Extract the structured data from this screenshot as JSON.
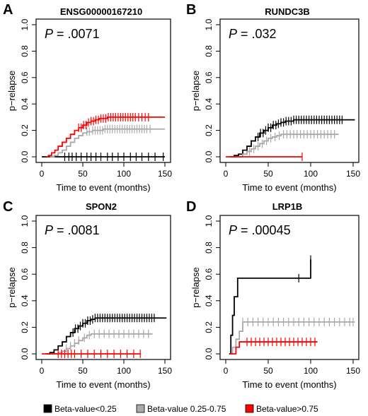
{
  "legend": [
    {
      "label": "Beta-value<0.25",
      "color": "#000000"
    },
    {
      "label": "Beta-value 0.25-0.75",
      "color": "#a9a9a9"
    },
    {
      "label": "Beta-value>0.75",
      "color": "#ff0000"
    }
  ],
  "chart_data": [
    {
      "type": "line",
      "panel": "A",
      "title": "ENSG00000167210",
      "pvalue": {
        "prefix": "P",
        "text": " = .0071"
      },
      "xlabel": "Time to event (months)",
      "ylabel": "p−relapse",
      "xlim": [
        0,
        150
      ],
      "ylim": [
        0,
        1.0
      ],
      "xticks": [
        0,
        50,
        100,
        150
      ],
      "yticks": [
        "0.0",
        "0.2",
        "0.4",
        "0.6",
        "0.8",
        "1.0"
      ],
      "series": [
        {
          "color": "#000000",
          "x": [
            0,
            150
          ],
          "y": [
            0.0,
            0.0
          ],
          "censor": [
            28,
            33,
            37,
            42,
            48,
            55,
            60,
            66,
            72,
            80,
            86,
            93,
            100,
            108,
            115,
            122,
            130,
            138,
            148
          ]
        },
        {
          "color": "#a9a9a9",
          "x": [
            10,
            15,
            20,
            25,
            30,
            35,
            40,
            45,
            50,
            55,
            62,
            68,
            75,
            150
          ],
          "y": [
            0.0,
            0.01,
            0.03,
            0.05,
            0.08,
            0.11,
            0.14,
            0.16,
            0.18,
            0.19,
            0.2,
            0.2,
            0.21,
            0.21
          ],
          "censor": [
            55,
            58,
            62,
            65,
            68,
            71,
            74,
            77,
            80,
            83,
            86,
            89,
            92,
            95,
            98,
            101,
            104,
            107,
            110,
            113,
            116,
            119,
            122,
            125,
            128,
            132
          ]
        },
        {
          "color": "#ff0000",
          "x": [
            5,
            8,
            12,
            16,
            20,
            25,
            30,
            35,
            40,
            45,
            50,
            55,
            60,
            65,
            70,
            75,
            80,
            150
          ],
          "y": [
            0.0,
            0.01,
            0.03,
            0.05,
            0.08,
            0.11,
            0.14,
            0.17,
            0.2,
            0.22,
            0.24,
            0.26,
            0.27,
            0.28,
            0.29,
            0.29,
            0.3,
            0.3
          ],
          "censor": [
            45,
            48,
            51,
            54,
            57,
            60,
            63,
            66,
            69,
            72,
            75,
            78,
            81,
            84,
            87,
            90,
            93,
            96,
            99,
            102,
            105,
            108,
            111,
            114,
            118,
            122,
            126,
            130
          ]
        }
      ]
    },
    {
      "type": "line",
      "panel": "B",
      "title": "RUNDC3B",
      "pvalue": {
        "prefix": "P",
        "text": " = .032"
      },
      "xlabel": "Time to event (months)",
      "ylabel": "p−relapse",
      "xlim": [
        0,
        150
      ],
      "ylim": [
        0,
        1.0
      ],
      "xticks": [
        0,
        50,
        100,
        150
      ],
      "yticks": [
        "0.0",
        "0.2",
        "0.4",
        "0.6",
        "0.8",
        "1.0"
      ],
      "series": [
        {
          "color": "#000000",
          "x": [
            5,
            10,
            15,
            20,
            25,
            30,
            35,
            40,
            45,
            50,
            55,
            60,
            65,
            70,
            80,
            152
          ],
          "y": [
            0.0,
            0.01,
            0.02,
            0.05,
            0.08,
            0.12,
            0.15,
            0.18,
            0.2,
            0.22,
            0.24,
            0.25,
            0.26,
            0.27,
            0.28,
            0.28
          ],
          "censor": [
            38,
            41,
            44,
            47,
            50,
            53,
            56,
            59,
            62,
            65,
            68,
            71,
            74,
            77,
            80,
            83,
            86,
            89,
            92,
            95,
            98,
            101,
            104,
            107,
            110,
            113,
            116,
            119,
            122,
            125,
            128,
            131,
            134,
            137
          ]
        },
        {
          "color": "#a9a9a9",
          "x": [
            10,
            20,
            25,
            30,
            35,
            40,
            45,
            50,
            55,
            60,
            65,
            133
          ],
          "y": [
            0.0,
            0.02,
            0.04,
            0.06,
            0.08,
            0.1,
            0.12,
            0.14,
            0.15,
            0.16,
            0.17,
            0.17
          ],
          "censor": [
            28,
            33,
            38,
            43,
            48,
            53,
            58,
            63,
            68,
            72,
            76,
            80,
            84,
            88,
            92,
            96,
            100,
            104,
            108,
            112,
            116,
            120,
            124,
            128
          ]
        },
        {
          "color": "#ff0000",
          "x": [
            0,
            90
          ],
          "y": [
            0.0,
            0.0
          ],
          "censor": [
            90
          ]
        }
      ]
    },
    {
      "type": "line",
      "panel": "C",
      "title": "SPON2",
      "pvalue": {
        "prefix": "P",
        "text": " = .0081"
      },
      "xlabel": "Time to event (months)",
      "ylabel": "p−relapse",
      "xlim": [
        0,
        150
      ],
      "ylim": [
        0,
        1.0
      ],
      "xticks": [
        0,
        50,
        100,
        150
      ],
      "yticks": [
        "0.0",
        "0.2",
        "0.4",
        "0.6",
        "0.8",
        "1.0"
      ],
      "series": [
        {
          "color": "#000000",
          "x": [
            5,
            10,
            15,
            20,
            25,
            30,
            35,
            40,
            45,
            50,
            55,
            60,
            65,
            70,
            80,
            152
          ],
          "y": [
            0.0,
            0.01,
            0.03,
            0.06,
            0.09,
            0.13,
            0.16,
            0.19,
            0.21,
            0.23,
            0.25,
            0.26,
            0.27,
            0.27,
            0.27,
            0.27
          ],
          "censor": [
            38,
            41,
            44,
            47,
            50,
            53,
            56,
            59,
            62,
            65,
            68,
            71,
            74,
            77,
            80,
            83,
            86,
            89,
            92,
            95,
            98,
            101,
            104,
            107,
            110,
            113,
            116,
            119,
            122,
            125,
            128,
            131,
            134,
            137
          ]
        },
        {
          "color": "#a9a9a9",
          "x": [
            15,
            20,
            25,
            30,
            35,
            40,
            45,
            50,
            55,
            60,
            65,
            135
          ],
          "y": [
            0.0,
            0.01,
            0.02,
            0.04,
            0.06,
            0.08,
            0.1,
            0.12,
            0.14,
            0.15,
            0.15,
            0.15
          ],
          "censor": [
            30,
            35,
            40,
            45,
            52,
            58,
            64,
            70,
            76,
            82,
            88,
            94,
            100,
            106,
            112,
            118,
            124,
            130
          ]
        },
        {
          "color": "#ff0000",
          "x": [
            0,
            120
          ],
          "y": [
            0.0,
            0.0
          ],
          "censor": [
            20,
            24,
            28,
            32,
            36,
            40,
            48,
            56,
            64,
            72,
            80,
            88,
            96,
            104,
            112,
            120
          ]
        }
      ]
    },
    {
      "type": "line",
      "panel": "D",
      "title": "LRP1B",
      "pvalue": {
        "prefix": "P",
        "text": " = .00045"
      },
      "xlabel": "Time to event (months)",
      "ylabel": "p−relapse",
      "xlim": [
        0,
        150
      ],
      "ylim": [
        0,
        1.0
      ],
      "xticks": [
        0,
        50,
        100,
        150
      ],
      "yticks": [
        "0.0",
        "0.2",
        "0.4",
        "0.6",
        "0.8",
        "1.0"
      ],
      "series": [
        {
          "color": "#000000",
          "x": [
            4,
            6,
            8,
            10,
            14,
            100
          ],
          "y": [
            0.0,
            0.14,
            0.29,
            0.43,
            0.57,
            0.71
          ],
          "censor": [
            86,
            100
          ]
        },
        {
          "color": "#a9a9a9",
          "x": [
            5,
            8,
            12,
            16,
            20,
            152
          ],
          "y": [
            0.0,
            0.05,
            0.11,
            0.17,
            0.24,
            0.24
          ],
          "censor": [
            20,
            26,
            32,
            38,
            44,
            50,
            56,
            62,
            68,
            74,
            80,
            86,
            92,
            98,
            104,
            110,
            116,
            122,
            128,
            134,
            140,
            146,
            150
          ]
        },
        {
          "color": "#ff0000",
          "x": [
            5,
            12,
            16,
            108
          ],
          "y": [
            0.0,
            0.05,
            0.09,
            0.09
          ],
          "censor": [
            25,
            30,
            35,
            40,
            45,
            50,
            55,
            60,
            65,
            70,
            75,
            80,
            85,
            90,
            95,
            100,
            105
          ]
        }
      ]
    }
  ]
}
